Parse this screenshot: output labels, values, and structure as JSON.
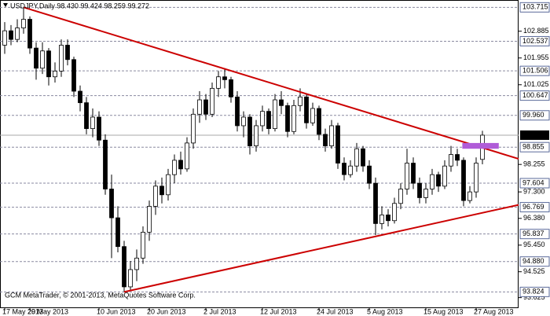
{
  "chart_data": {
    "type": "candlestick",
    "title": "USDJPY,Daily  98.430 99.424 98.259 99.272",
    "footer": "GCM MetaTrader, © 2001-2013, MetaQuotes Software Corp.",
    "categories": [
      "17 May 2013",
      null,
      null,
      null,
      "29 May 2013",
      null,
      null,
      null,
      null,
      null,
      null,
      null,
      null,
      null,
      null,
      "10 Jun 2013",
      null,
      null,
      null,
      null,
      null,
      null,
      null,
      "20 Jun 2013",
      null,
      null,
      null,
      null,
      null,
      null,
      null,
      null,
      "2 Jul 2013",
      null,
      null,
      null,
      null,
      null,
      null,
      null,
      null,
      "12 Jul 2013",
      null,
      null,
      null,
      null,
      null,
      null,
      null,
      null,
      "24 Jul 2013",
      null,
      null,
      null,
      null,
      null,
      null,
      null,
      "5 Aug 2013",
      null,
      null,
      null,
      null,
      null,
      null,
      null,
      null,
      "15 Aug 2013",
      null,
      null,
      null,
      null,
      null,
      null,
      null,
      "27 Aug 2013",
      null
    ],
    "candles": [
      [
        102.4,
        103.2,
        102.1,
        102.9
      ],
      [
        102.9,
        103.1,
        102.4,
        102.6
      ],
      [
        102.6,
        103.3,
        102.5,
        103.0
      ],
      [
        103.0,
        103.715,
        102.8,
        103.3
      ],
      [
        103.3,
        103.4,
        102.1,
        102.3
      ],
      [
        102.3,
        102.5,
        101.2,
        101.6
      ],
      [
        101.6,
        102.5,
        101.4,
        102.2
      ],
      [
        102.2,
        102.3,
        101.0,
        101.3
      ],
      [
        101.3,
        101.8,
        101.1,
        101.5
      ],
      [
        101.5,
        102.6,
        101.3,
        102.4
      ],
      [
        102.4,
        102.6,
        101.7,
        101.9
      ],
      [
        101.9,
        102.0,
        100.6,
        100.8
      ],
      [
        100.8,
        101.0,
        100.1,
        100.4
      ],
      [
        100.4,
        100.6,
        99.3,
        99.5
      ],
      [
        99.5,
        100.2,
        99.2,
        99.9
      ],
      [
        99.9,
        100.1,
        98.9,
        99.1
      ],
      [
        99.1,
        99.3,
        97.2,
        97.4
      ],
      [
        97.4,
        97.9,
        95.0,
        96.4
      ],
      [
        96.4,
        96.8,
        95.2,
        95.4
      ],
      [
        95.4,
        95.6,
        93.824,
        94.0
      ],
      [
        94.0,
        94.9,
        93.9,
        94.6
      ],
      [
        94.6,
        95.3,
        94.2,
        95.0
      ],
      [
        95.0,
        96.1,
        94.8,
        95.9
      ],
      [
        95.9,
        97.0,
        95.6,
        96.8
      ],
      [
        96.8,
        97.7,
        96.5,
        97.5
      ],
      [
        97.5,
        97.8,
        96.9,
        97.2
      ],
      [
        97.2,
        98.1,
        97.0,
        97.9
      ],
      [
        97.9,
        98.6,
        97.6,
        98.4
      ],
      [
        98.4,
        98.7,
        97.9,
        98.1
      ],
      [
        98.1,
        99.2,
        98.0,
        99.0
      ],
      [
        99.0,
        100.2,
        98.8,
        100.0
      ],
      [
        100.0,
        100.8,
        99.7,
        100.5
      ],
      [
        100.5,
        100.7,
        99.8,
        100.0
      ],
      [
        100.0,
        101.1,
        99.9,
        100.9
      ],
      [
        100.9,
        101.5,
        100.6,
        101.3
      ],
      [
        101.3,
        101.6,
        100.9,
        101.2
      ],
      [
        101.2,
        101.3,
        100.4,
        100.6
      ],
      [
        100.6,
        100.8,
        99.4,
        99.6
      ],
      [
        99.6,
        100.1,
        99.2,
        99.9
      ],
      [
        99.9,
        100.0,
        98.6,
        98.9
      ],
      [
        98.9,
        99.8,
        98.7,
        99.6
      ],
      [
        99.6,
        100.3,
        99.4,
        100.1
      ],
      [
        100.1,
        100.2,
        99.3,
        99.5
      ],
      [
        99.5,
        100.7,
        99.4,
        100.5
      ],
      [
        100.5,
        100.8,
        100.0,
        100.3
      ],
      [
        100.3,
        100.4,
        99.2,
        99.4
      ],
      [
        99.4,
        100.5,
        99.3,
        100.3
      ],
      [
        100.3,
        100.9,
        100.1,
        100.6
      ],
      [
        100.6,
        100.7,
        99.5,
        99.7
      ],
      [
        99.7,
        100.4,
        99.6,
        100.2
      ],
      [
        100.2,
        100.3,
        99.1,
        99.3
      ],
      [
        99.3,
        99.5,
        98.7,
        98.9
      ],
      [
        98.9,
        99.8,
        98.8,
        99.6
      ],
      [
        99.6,
        99.7,
        98.1,
        98.3
      ],
      [
        98.3,
        98.5,
        97.7,
        97.9
      ],
      [
        97.9,
        98.4,
        97.8,
        98.2
      ],
      [
        98.2,
        99.0,
        98.0,
        98.8
      ],
      [
        98.8,
        98.9,
        98.0,
        98.2
      ],
      [
        98.2,
        98.4,
        97.4,
        97.6
      ],
      [
        97.6,
        97.8,
        95.8,
        96.2
      ],
      [
        96.2,
        96.8,
        96.0,
        96.5
      ],
      [
        96.5,
        96.7,
        96.1,
        96.3
      ],
      [
        96.3,
        97.1,
        96.2,
        96.9
      ],
      [
        96.9,
        97.6,
        96.7,
        97.4
      ],
      [
        97.4,
        98.8,
        97.2,
        98.3
      ],
      [
        98.3,
        98.5,
        97.4,
        97.6
      ],
      [
        97.6,
        97.8,
        96.9,
        97.1
      ],
      [
        97.1,
        97.6,
        96.9,
        97.4
      ],
      [
        97.4,
        98.1,
        97.2,
        97.9
      ],
      [
        97.9,
        98.0,
        97.3,
        97.5
      ],
      [
        97.5,
        98.4,
        97.4,
        98.2
      ],
      [
        98.2,
        98.9,
        98.0,
        98.6
      ],
      [
        98.6,
        98.8,
        98.2,
        98.4
      ],
      [
        98.4,
        98.5,
        96.8,
        97.0
      ],
      [
        97.0,
        97.5,
        96.9,
        97.3
      ],
      [
        97.3,
        98.5,
        97.1,
        98.3
      ],
      [
        98.43,
        99.424,
        98.259,
        99.272
      ]
    ],
    "ylim": [
      93.26,
      103.97
    ],
    "yticks": [
      102.885,
      101.955,
      101.025,
      {
        "value": 98.255,
        "label": "98.255"
      },
      {
        "value": 97.3,
        "label": "97.300"
      },
      {
        "value": 96.38,
        "label": "96.380"
      },
      {
        "value": 95.45,
        "label": "95.450"
      },
      94.525,
      93.625
    ],
    "levels": [
      103.715,
      102.537,
      101.506,
      100.647,
      {
        "value": 99.96,
        "label": "99.960"
      },
      98.855,
      97.604,
      96.769,
      95.837,
      {
        "value": 94.88,
        "label": "94.880"
      },
      93.824
    ],
    "current_price": 99.272,
    "grid": true,
    "up_color": "#ffffff",
    "down_color": "#000000",
    "trendlines": [
      {
        "color": "#cc0000",
        "points": [
          [
            3,
            103.715
          ],
          [
            81.75,
            98.45
          ]
        ]
      },
      {
        "color": "#cc0000",
        "points": [
          [
            19,
            93.824
          ],
          [
            81.75,
            96.85
          ]
        ]
      }
    ],
    "zones": [
      {
        "color": "#b05cd8",
        "x": [
          72.8,
          78.6
        ],
        "y": [
          98.8,
          99.0
        ]
      }
    ]
  }
}
